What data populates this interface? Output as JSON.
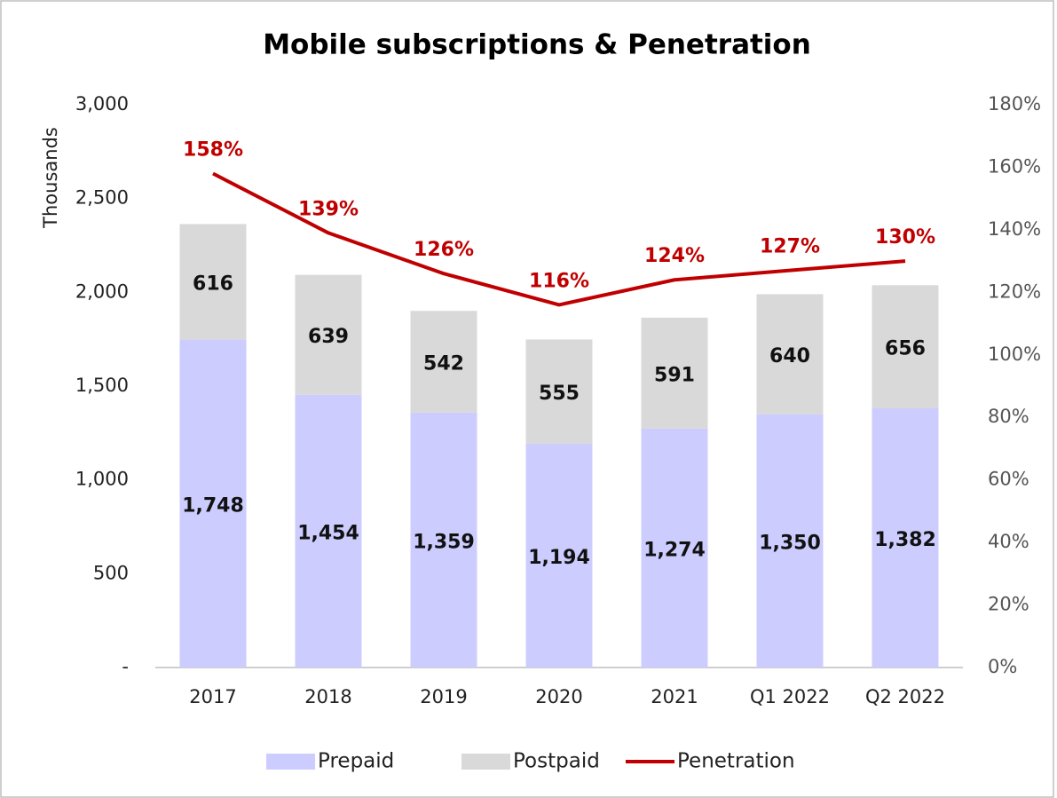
{
  "chart_data": {
    "type": "bar",
    "stacked": true,
    "title": "Mobile subscriptions & Penetration",
    "y_label": "Thousands",
    "categories": [
      "2017",
      "2018",
      "2019",
      "2020",
      "2021",
      "Q1 2022",
      "Q2 2022"
    ],
    "series": [
      {
        "name": "Prepaid",
        "color": "#ccccff",
        "values": [
          1748,
          1454,
          1359,
          1194,
          1274,
          1350,
          1382
        ],
        "value_labels": [
          "1,748",
          "1,454",
          "1,359",
          "1,194",
          "1,274",
          "1,350",
          "1,382"
        ]
      },
      {
        "name": "Postpaid",
        "color": "#d9d9d9",
        "values": [
          616,
          639,
          542,
          555,
          591,
          640,
          656
        ]
      },
      {
        "name": "Penetration",
        "type": "line",
        "axis": "y2",
        "color": "#c00000",
        "values": [
          158,
          139,
          126,
          116,
          124,
          127,
          130
        ],
        "value_labels": [
          "158%",
          "139%",
          "126%",
          "116%",
          "124%",
          "127%",
          "130%"
        ]
      }
    ],
    "ylim": [
      0,
      3000
    ],
    "yticks": [
      {
        "value": 0,
        "label": "-"
      },
      500,
      {
        "value": 1000,
        "label": "1,000"
      },
      {
        "value": 1500,
        "label": "1,500"
      },
      {
        "value": 2000,
        "label": "2,000"
      },
      {
        "value": 2500,
        "label": "2,500"
      },
      {
        "value": 3000,
        "label": "3,000"
      }
    ],
    "y2lim": [
      0,
      180
    ],
    "y2ticks": [
      {
        "value": 0,
        "label": "0%"
      },
      {
        "value": 20,
        "label": "20%"
      },
      {
        "value": 40,
        "label": "40%"
      },
      {
        "value": 60,
        "label": "60%"
      },
      {
        "value": 80,
        "label": "80%"
      },
      {
        "value": 100,
        "label": "100%"
      },
      {
        "value": 120,
        "label": "120%"
      },
      {
        "value": 140,
        "label": "140%"
      },
      {
        "value": 160,
        "label": "160%"
      },
      {
        "value": 180,
        "label": "180%"
      }
    ],
    "grid": false,
    "legend": "bottom"
  }
}
